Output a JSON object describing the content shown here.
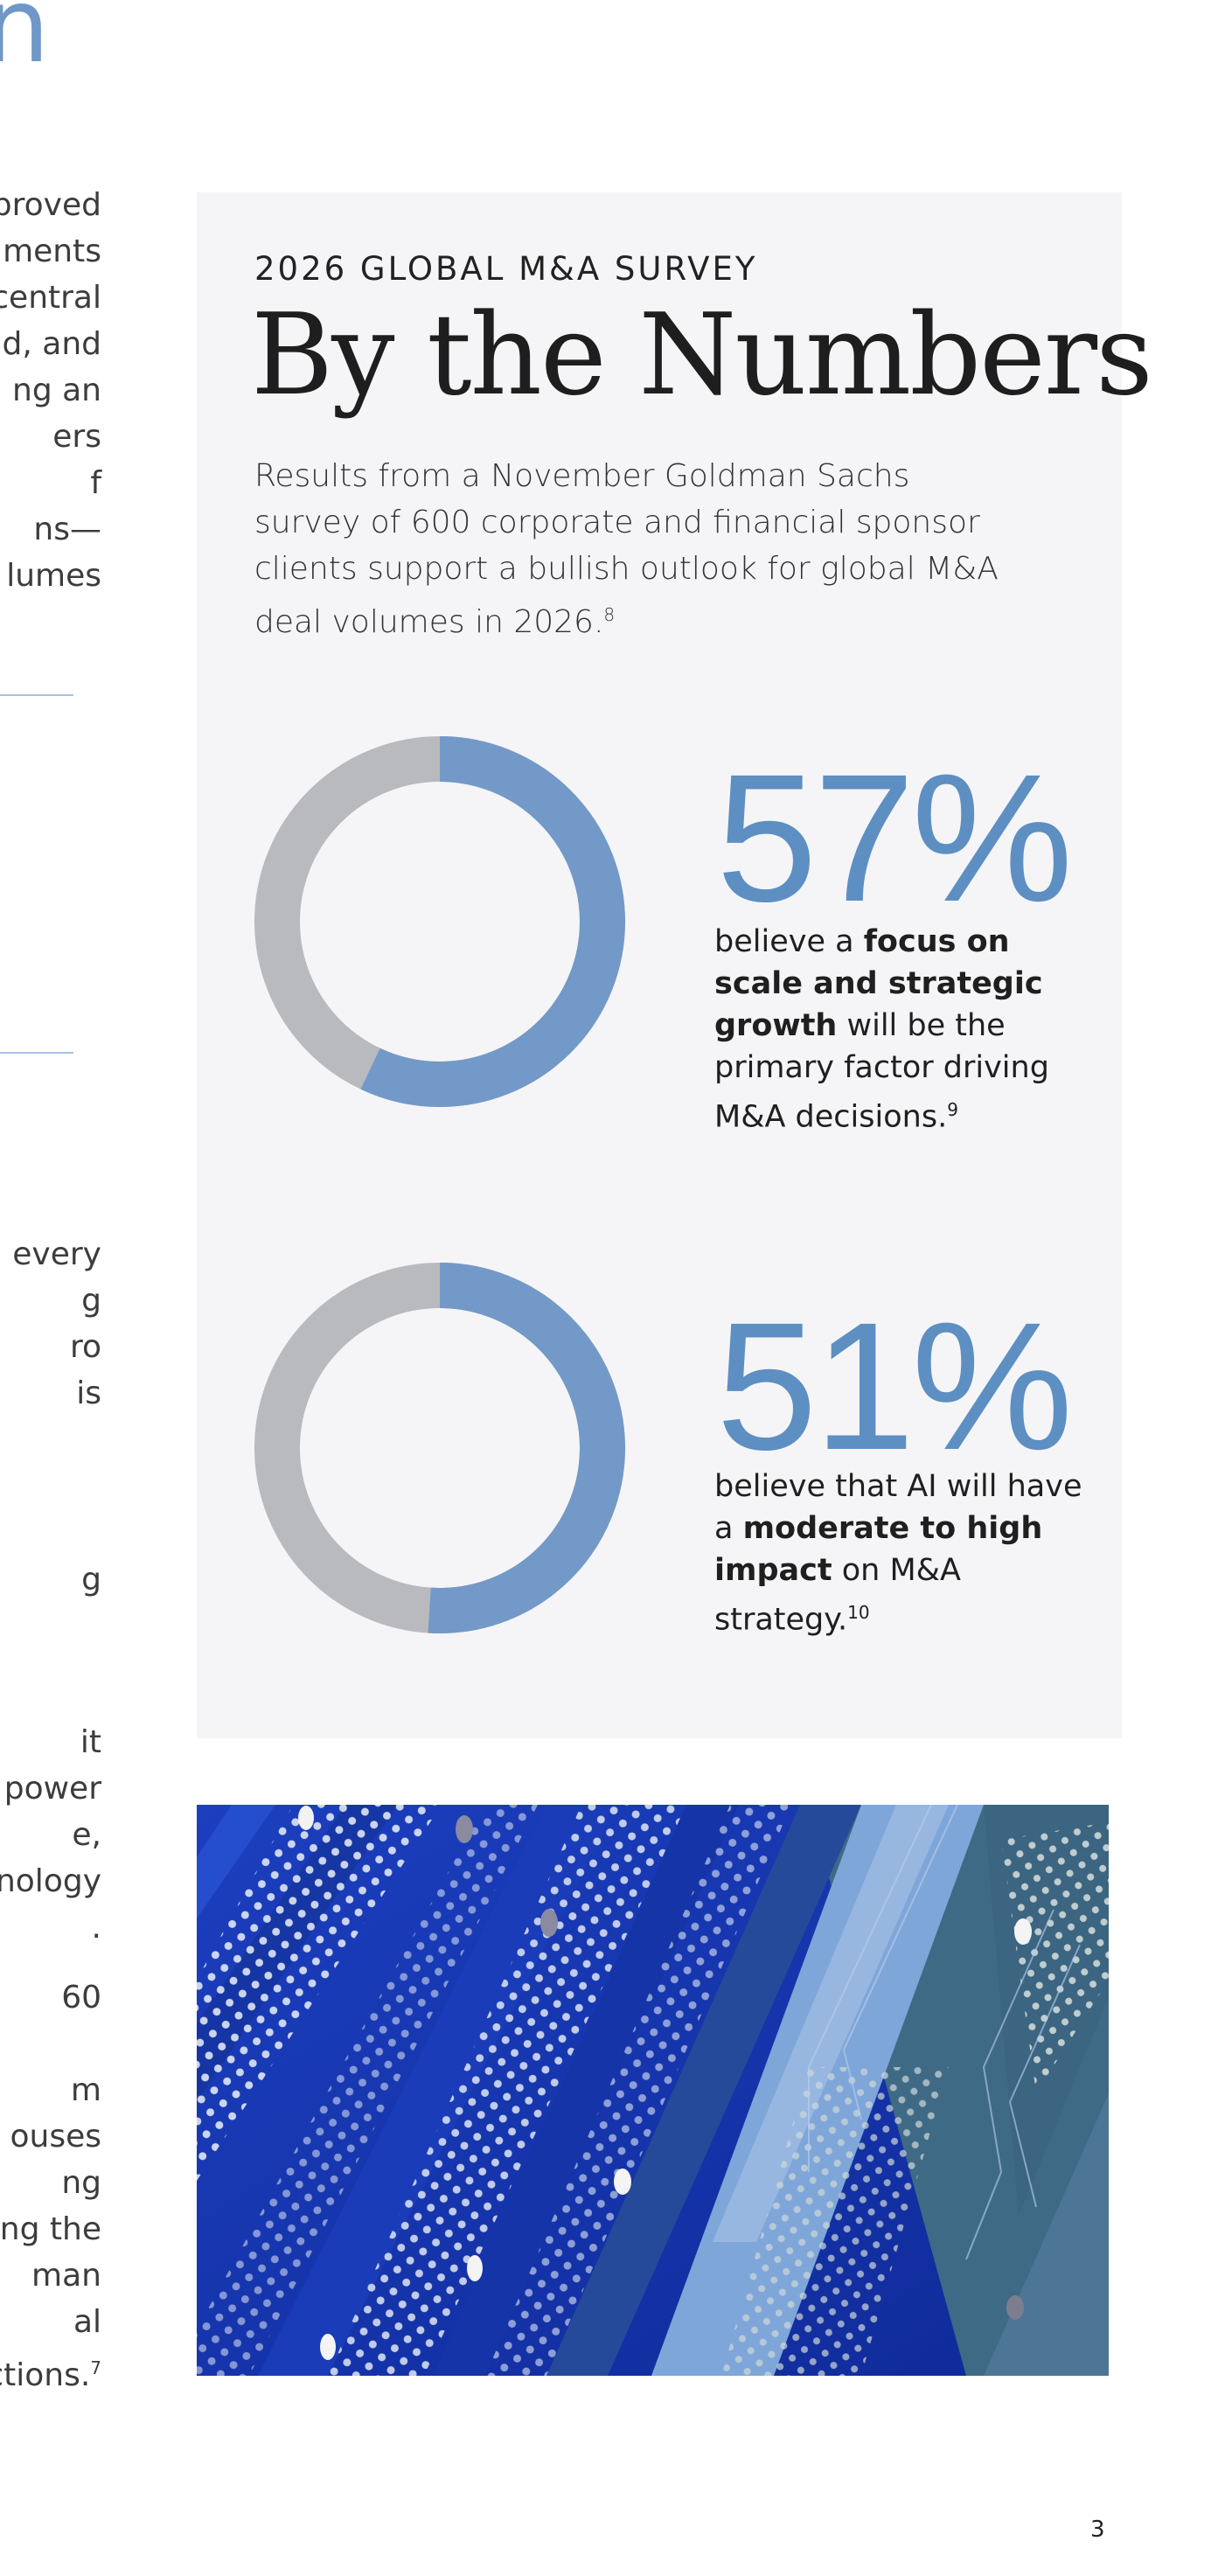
{
  "left_column": {
    "heading_fragment": "n",
    "block1": [
      "proved",
      "ments",
      "central",
      "d, and",
      "ng an",
      "ers",
      "f",
      "ns—",
      "lumes"
    ],
    "block2": [
      "every",
      "g",
      "ro",
      "is"
    ],
    "block3": [
      "g"
    ],
    "block4": [
      "it",
      "power",
      "e,",
      "nology",
      "."
    ],
    "block5": [
      "60"
    ],
    "block6": [
      "m",
      "ouses",
      "ng",
      "ing the",
      "man",
      "al",
      "ctions."
    ],
    "block6_footnote": "7"
  },
  "panel": {
    "eyebrow": "2026 GLOBAL M&A SURVEY",
    "title": "By the Numbers",
    "intro": "Results from a November Goldman Sachs survey of 600 corporate and financial sponsor clients support a bullish outlook for global M&A deal volumes in 2026.",
    "intro_footnote": "8",
    "stats": [
      {
        "value": "57%",
        "fraction": 0.57,
        "text_before": "believe a ",
        "text_bold": "focus on scale and strategic growth",
        "text_after": " will be the primary factor driving M&A decisions.",
        "footnote": "9"
      },
      {
        "value": "51%",
        "fraction": 0.51,
        "text_before": "believe that AI will have a ",
        "text_bold": "moderate to high impact",
        "text_after": " on M&A strategy.",
        "footnote": "10"
      }
    ]
  },
  "colors": {
    "accent_blue": "#6f97c8",
    "donut_filled": "#7399c8",
    "donut_remainder": "#b9babd",
    "panel_background": "#f5f5f7"
  },
  "photo": {
    "subject": "circuit-board-photo"
  },
  "page_number": "3"
}
